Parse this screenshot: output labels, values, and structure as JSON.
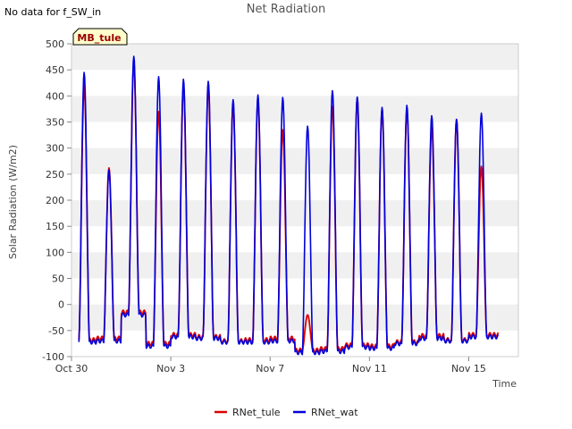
{
  "note": "No data for f_SW_in",
  "chart_data": {
    "type": "line",
    "title": "Net Radiation",
    "xlabel": "Time",
    "ylabel": "Solar Radiation (W/m2)",
    "site_badge": "MB_tule",
    "ylim": [
      -100,
      500
    ],
    "yticks": [
      -100,
      -50,
      0,
      50,
      100,
      150,
      200,
      250,
      300,
      350,
      400,
      450,
      500
    ],
    "xlim_days": [
      0,
      18
    ],
    "xticks": [
      {
        "day": 0,
        "label": "Oct 30"
      },
      {
        "day": 4,
        "label": "Nov 3"
      },
      {
        "day": 8,
        "label": "Nov 7"
      },
      {
        "day": 12,
        "label": "Nov 11"
      },
      {
        "day": 16,
        "label": "Nov 15"
      }
    ],
    "grid": "horizontal bands",
    "legend_position": "bottom",
    "series": [
      {
        "name": "RNet_tule",
        "color": "#dd0000",
        "daily_peaks": [
          420,
          262,
          465,
          370,
          420,
          420,
          385,
          395,
          335,
          -20,
          380,
          395,
          375,
          375,
          340,
          355,
          265
        ],
        "night_values": [
          -68,
          -65,
          -15,
          -75,
          -58,
          -62,
          -70,
          -68,
          -65,
          -88,
          -85,
          -78,
          -80,
          -72,
          -60,
          -68,
          -58
        ]
      },
      {
        "name": "RNet_wat",
        "color": "#0000dd",
        "daily_peaks": [
          445,
          258,
          476,
          437,
          432,
          428,
          393,
          402,
          397,
          342,
          410,
          398,
          378,
          382,
          362,
          355,
          367
        ],
        "night_values": [
          -72,
          -70,
          -20,
          -80,
          -62,
          -65,
          -72,
          -72,
          -70,
          -92,
          -90,
          -82,
          -84,
          -75,
          -65,
          -70,
          -62
        ]
      }
    ]
  }
}
